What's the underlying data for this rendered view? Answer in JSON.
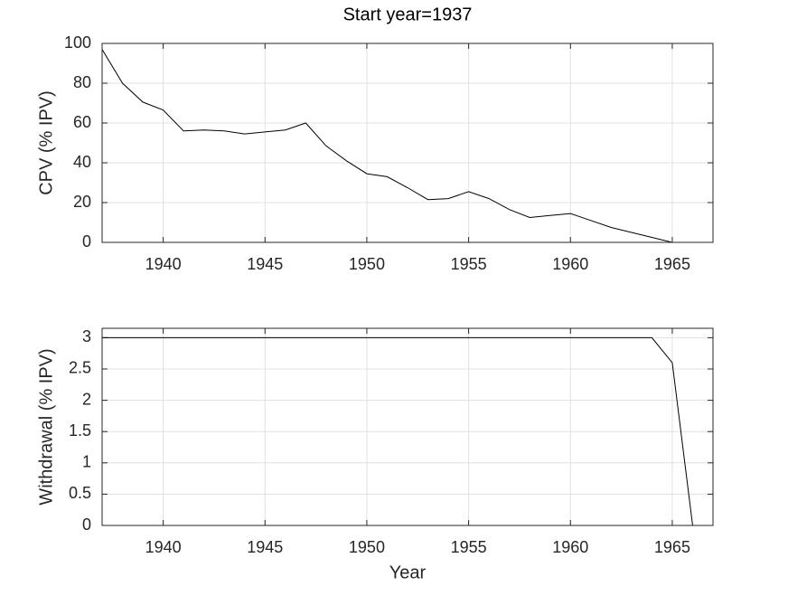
{
  "chart_data": [
    {
      "type": "line",
      "title": "Start year=1937",
      "ylabel": "CPV (% IPV)",
      "x": [
        1937,
        1938,
        1939,
        1940,
        1941,
        1942,
        1943,
        1944,
        1945,
        1946,
        1947,
        1948,
        1949,
        1950,
        1951,
        1952,
        1953,
        1954,
        1955,
        1956,
        1957,
        1958,
        1959,
        1960,
        1961,
        1962,
        1963,
        1964,
        1965,
        1966,
        1967
      ],
      "series": [
        {
          "color": "#000000",
          "values": [
            97,
            80,
            70.5,
            66.5,
            56,
            56.5,
            56,
            54.5,
            55.5,
            56.5,
            60,
            48.5,
            41,
            34.5,
            33,
            27.5,
            21.5,
            22,
            25.5,
            22,
            16.5,
            12.5,
            13.5,
            14.5,
            11,
            7.5,
            5,
            2.5,
            0,
            0,
            0
          ]
        }
      ],
      "xlim": [
        1937,
        1967
      ],
      "xticks": [
        1940,
        1945,
        1950,
        1955,
        1960,
        1965
      ],
      "ylim": [
        0,
        100
      ],
      "yticks": [
        0,
        20,
        40,
        60,
        80,
        100
      ],
      "grid": true
    },
    {
      "type": "line",
      "xlabel": "Year",
      "ylabel": "Withdrawal (% IPV)",
      "x": [
        1937,
        1938,
        1939,
        1940,
        1941,
        1942,
        1943,
        1944,
        1945,
        1946,
        1947,
        1948,
        1949,
        1950,
        1951,
        1952,
        1953,
        1954,
        1955,
        1956,
        1957,
        1958,
        1959,
        1960,
        1961,
        1962,
        1963,
        1964,
        1965,
        1966
      ],
      "series": [
        {
          "color": "#000000",
          "values": [
            3,
            3,
            3,
            3,
            3,
            3,
            3,
            3,
            3,
            3,
            3,
            3,
            3,
            3,
            3,
            3,
            3,
            3,
            3,
            3,
            3,
            3,
            3,
            3,
            3,
            3,
            3,
            3,
            2.6,
            0
          ]
        }
      ],
      "xlim": [
        1937,
        1967
      ],
      "xticks": [
        1940,
        1945,
        1950,
        1955,
        1960,
        1965
      ],
      "ylim": [
        0,
        3.15
      ],
      "yticks": [
        0,
        0.5,
        1,
        1.5,
        2,
        2.5,
        3
      ],
      "grid": true
    }
  ]
}
